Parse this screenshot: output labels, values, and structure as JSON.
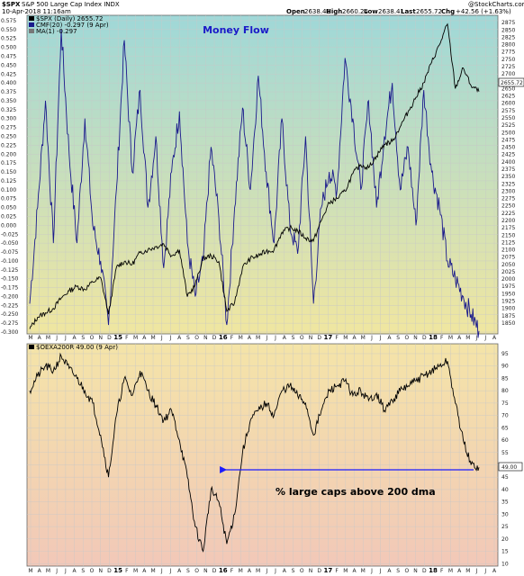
{
  "header": {
    "symbol": "$SPX",
    "description": "S&P 500 Large Cap Index  INDX",
    "datetime": "10-Apr-2018 11:16am",
    "open_label": "Open",
    "open_value": "2638.41",
    "high_label": "High",
    "high_value": "2660.24",
    "low_label": "Low",
    "low_value": "2638.41",
    "last_label": "Last",
    "last_value": "2655.72",
    "chg_label": "Chg",
    "chg_value": "+42.56 (+1.63%)",
    "watermark": "@StockCharts.com"
  },
  "colors": {
    "line": "#000000",
    "money_flow": "#1a1a8c",
    "arrow": "#1a1aff",
    "title": "#1a1ac8",
    "top_bg_top": "#9fd8d8",
    "top_bg_bottom": "#f0e6a0",
    "bottom_bg_top": "#f4e4a8",
    "bottom_bg_bottom": "#f2c8b8"
  },
  "chart_data": [
    {
      "type": "line",
      "title": "Money Flow",
      "legend": [
        {
          "label": "$SPX (Daily) 2655.72"
        },
        {
          "label": "CMF(20) -0.297 (9 Apr)"
        },
        {
          "label": "MA(1) -0.297"
        }
      ],
      "left_axis": {
        "ylim": [
          -0.305,
          0.59
        ],
        "ticks": [
          "-0.300",
          "-0.275",
          "-0.250",
          "-0.225",
          "-0.200",
          "-0.175",
          "-0.150",
          "-0.125",
          "-0.100",
          "-0.075",
          "-0.050",
          "-0.025",
          "0.000",
          "0.025",
          "0.050",
          "0.075",
          "0.100",
          "0.125",
          "0.150",
          "0.175",
          "0.200",
          "0.225",
          "0.250",
          "0.275",
          "0.300",
          "0.325",
          "0.350",
          "0.375",
          "0.400",
          "0.425",
          "0.450",
          "0.475",
          "0.500",
          "0.525",
          "0.550",
          "0.575"
        ]
      },
      "right_axis": {
        "ylim": [
          1813,
          2900
        ],
        "ticks": [
          "1850",
          "1875",
          "1900",
          "1925",
          "1950",
          "1975",
          "2000",
          "2025",
          "2050",
          "2075",
          "2100",
          "2125",
          "2150",
          "2175",
          "2200",
          "2225",
          "2250",
          "2275",
          "2300",
          "2325",
          "2350",
          "2375",
          "2400",
          "2425",
          "2450",
          "2475",
          "2500",
          "2525",
          "2550",
          "2575",
          "2600",
          "2625",
          "2650",
          "2675",
          "2700",
          "2725",
          "2750",
          "2775",
          "2800",
          "2825",
          "2850",
          "2875"
        ],
        "last_label": "2655.72"
      },
      "x_months": 48,
      "series": [
        {
          "key": "spx",
          "axis": "right",
          "points": [
            [
              0,
              1830
            ],
            [
              1,
              1870
            ],
            [
              2,
              1885
            ],
            [
              3,
              1900
            ],
            [
              4,
              1935
            ],
            [
              5,
              1960
            ],
            [
              6,
              1975
            ],
            [
              7,
              1965
            ],
            [
              8,
              1990
            ],
            [
              9,
              2005
            ],
            [
              10,
              1880
            ],
            [
              11,
              2040
            ],
            [
              12,
              2060
            ],
            [
              13,
              2050
            ],
            [
              14,
              2090
            ],
            [
              15,
              2100
            ],
            [
              16,
              2110
            ],
            [
              17,
              2120
            ],
            [
              18,
              2080
            ],
            [
              19,
              2100
            ],
            [
              20,
              1940
            ],
            [
              21,
              1980
            ],
            [
              22,
              2070
            ],
            [
              23,
              2080
            ],
            [
              24,
              2060
            ],
            [
              25,
              1890
            ],
            [
              26,
              1920
            ],
            [
              27,
              2040
            ],
            [
              28,
              2070
            ],
            [
              29,
              2080
            ],
            [
              30,
              2095
            ],
            [
              31,
              2100
            ],
            [
              32,
              2160
            ],
            [
              33,
              2175
            ],
            [
              34,
              2165
            ],
            [
              35,
              2140
            ],
            [
              36,
              2130
            ],
            [
              37,
              2200
            ],
            [
              38,
              2260
            ],
            [
              39,
              2275
            ],
            [
              40,
              2300
            ],
            [
              41,
              2360
            ],
            [
              42,
              2390
            ],
            [
              43,
              2380
            ],
            [
              44,
              2420
            ],
            [
              45,
              2460
            ],
            [
              46,
              2470
            ],
            [
              47,
              2520
            ],
            [
              48,
              2570
            ],
            [
              49,
              2620
            ],
            [
              50,
              2670
            ],
            [
              51,
              2740
            ],
            [
              52,
              2800
            ],
            [
              53,
              2870
            ],
            [
              54,
              2650
            ],
            [
              55,
              2720
            ],
            [
              56,
              2660
            ],
            [
              57,
              2640
            ]
          ]
        },
        {
          "key": "cmf",
          "axis": "left",
          "points": [
            [
              0,
              -0.22
            ],
            [
              1,
              0.05
            ],
            [
              2,
              0.35
            ],
            [
              3,
              -0.05
            ],
            [
              4,
              0.55
            ],
            [
              5,
              0.2
            ],
            [
              6,
              -0.05
            ],
            [
              7,
              0.3
            ],
            [
              8,
              0.0
            ],
            [
              9,
              -0.1
            ],
            [
              10,
              -0.28
            ],
            [
              11,
              0.1
            ],
            [
              12,
              0.52
            ],
            [
              13,
              0.15
            ],
            [
              14,
              0.38
            ],
            [
              15,
              0.05
            ],
            [
              16,
              0.25
            ],
            [
              17,
              -0.12
            ],
            [
              18,
              0.15
            ],
            [
              19,
              0.32
            ],
            [
              20,
              -0.05
            ],
            [
              21,
              -0.2
            ],
            [
              22,
              -0.1
            ],
            [
              23,
              0.22
            ],
            [
              24,
              0.02
            ],
            [
              25,
              -0.28
            ],
            [
              26,
              0.05
            ],
            [
              27,
              0.33
            ],
            [
              28,
              0.1
            ],
            [
              29,
              0.42
            ],
            [
              30,
              0.15
            ],
            [
              31,
              -0.05
            ],
            [
              32,
              0.3
            ],
            [
              33,
              0.0
            ],
            [
              34,
              -0.08
            ],
            [
              35,
              0.25
            ],
            [
              36,
              -0.22
            ],
            [
              37,
              0.05
            ],
            [
              38,
              0.15
            ],
            [
              39,
              0.1
            ],
            [
              40,
              0.47
            ],
            [
              41,
              0.3
            ],
            [
              42,
              0.1
            ],
            [
              43,
              0.35
            ],
            [
              44,
              0.05
            ],
            [
              45,
              0.25
            ],
            [
              46,
              0.4
            ],
            [
              47,
              0.1
            ],
            [
              48,
              0.22
            ],
            [
              49,
              0.0
            ],
            [
              50,
              0.38
            ],
            [
              51,
              0.15
            ],
            [
              52,
              0.05
            ],
            [
              53,
              -0.1
            ],
            [
              54,
              -0.15
            ],
            [
              55,
              -0.2
            ],
            [
              56,
              -0.25
            ],
            [
              57,
              -0.297
            ]
          ]
        }
      ]
    },
    {
      "type": "line",
      "legend": [
        {
          "label": "$OEXA200R 49.00 (9 Apr)"
        }
      ],
      "right_axis": {
        "ylim": [
          9,
          99
        ],
        "ticks": [
          "10",
          "15",
          "20",
          "25",
          "30",
          "35",
          "40",
          "45",
          "50",
          "55",
          "60",
          "65",
          "70",
          "75",
          "80",
          "85",
          "90",
          "95"
        ],
        "last_label": "49.00"
      },
      "annotation": {
        "text": "% large caps above 200 dma",
        "arrow_from": [
          57,
          48
        ],
        "arrow_to": [
          24,
          48
        ]
      },
      "series": [
        {
          "key": "pct",
          "axis": "right",
          "points": [
            [
              0,
              80
            ],
            [
              1,
              86
            ],
            [
              2,
              90
            ],
            [
              3,
              88
            ],
            [
              4,
              94
            ],
            [
              5,
              89
            ],
            [
              6,
              85
            ],
            [
              7,
              80
            ],
            [
              8,
              75
            ],
            [
              9,
              62
            ],
            [
              10,
              45
            ],
            [
              11,
              70
            ],
            [
              12,
              85
            ],
            [
              13,
              78
            ],
            [
              14,
              88
            ],
            [
              15,
              80
            ],
            [
              16,
              74
            ],
            [
              17,
              68
            ],
            [
              18,
              72
            ],
            [
              19,
              60
            ],
            [
              20,
              45
            ],
            [
              21,
              25
            ],
            [
              22,
              15
            ],
            [
              23,
              40
            ],
            [
              24,
              35
            ],
            [
              25,
              18
            ],
            [
              26,
              30
            ],
            [
              27,
              55
            ],
            [
              28,
              68
            ],
            [
              29,
              72
            ],
            [
              30,
              75
            ],
            [
              31,
              70
            ],
            [
              32,
              80
            ],
            [
              33,
              82
            ],
            [
              34,
              78
            ],
            [
              35,
              75
            ],
            [
              36,
              62
            ],
            [
              37,
              72
            ],
            [
              38,
              80
            ],
            [
              39,
              82
            ],
            [
              40,
              84
            ],
            [
              41,
              78
            ],
            [
              42,
              80
            ],
            [
              43,
              76
            ],
            [
              44,
              79
            ],
            [
              45,
              72
            ],
            [
              46,
              76
            ],
            [
              47,
              80
            ],
            [
              48,
              82
            ],
            [
              49,
              84
            ],
            [
              50,
              86
            ],
            [
              51,
              88
            ],
            [
              52,
              90
            ],
            [
              53,
              92
            ],
            [
              54,
              75
            ],
            [
              55,
              60
            ],
            [
              56,
              50
            ],
            [
              57,
              49
            ]
          ]
        }
      ]
    }
  ],
  "x_axis": {
    "month_labels": [
      "M",
      "A",
      "M",
      "J",
      "J",
      "A",
      "S",
      "O",
      "N",
      "D",
      "2015",
      "F",
      "M",
      "A",
      "M",
      "J",
      "J",
      "A",
      "S",
      "O",
      "N",
      "D",
      "2016",
      "F",
      "M",
      "A",
      "M",
      "J",
      "J",
      "A",
      "S",
      "O",
      "N",
      "D",
      "2017",
      "F",
      "M",
      "A",
      "M",
      "J",
      "J",
      "A",
      "S",
      "O",
      "N",
      "D",
      "2018",
      "F",
      "M",
      "A",
      "M",
      "J",
      "J",
      "A"
    ],
    "year_labels": [
      "15",
      "16",
      "17",
      "18"
    ]
  }
}
